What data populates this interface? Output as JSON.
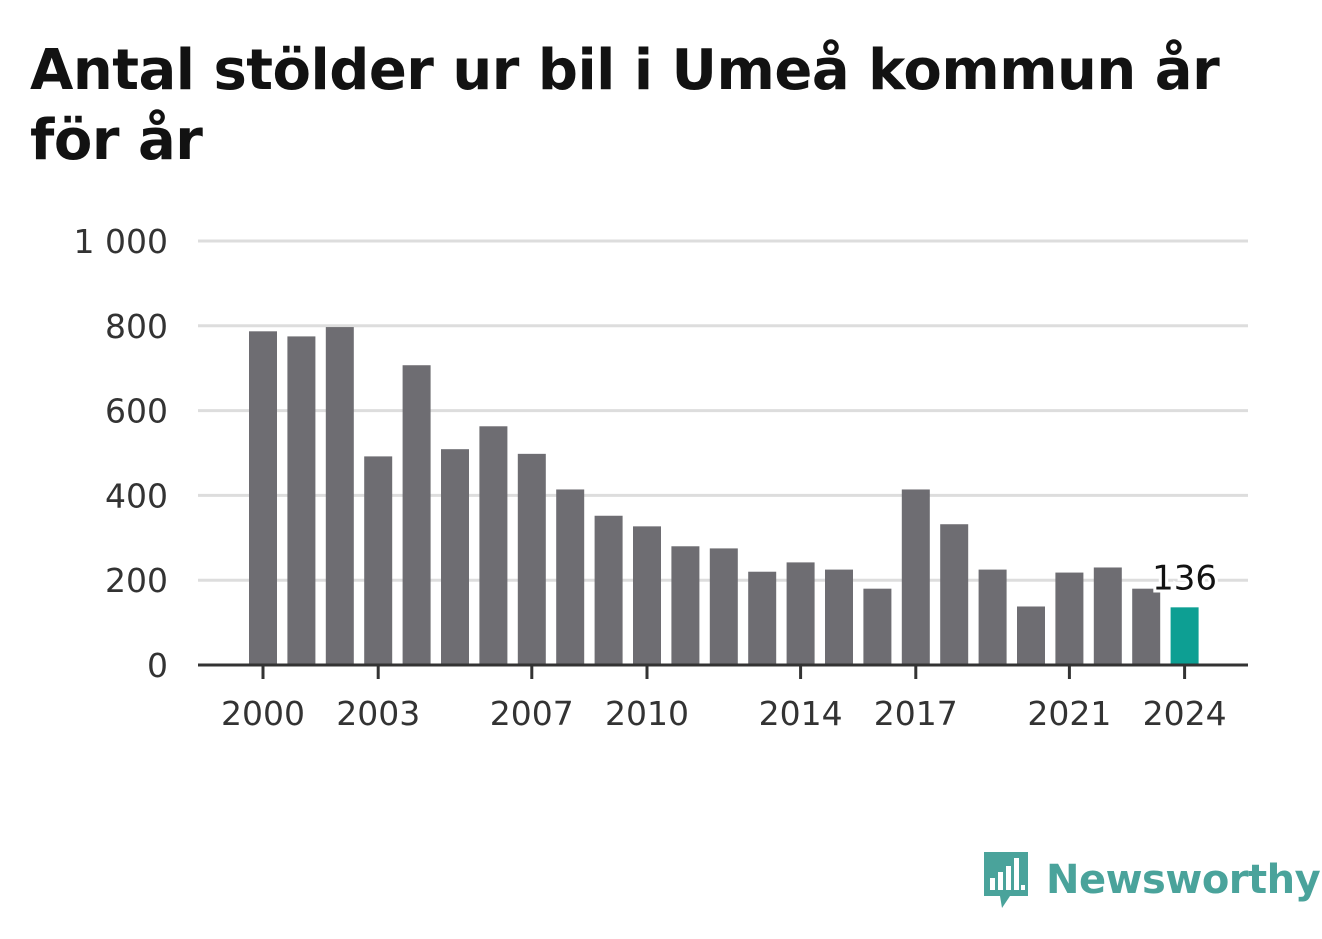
{
  "title": "Antal stölder ur bil i Umeå kommun år för år",
  "brand": {
    "name": "Newsworthy",
    "icon": "bar-chart-speech-icon",
    "color": "#4aa39b"
  },
  "colors": {
    "bar": "#6e6d72",
    "highlight": "#0d9f93",
    "grid": "#dddddd",
    "axis": "#333333"
  },
  "chart_data": {
    "type": "bar",
    "title": "Antal stölder ur bil i Umeå kommun år för år",
    "xlabel": "",
    "ylabel": "",
    "categories": [
      "2000",
      "2001",
      "2002",
      "2003",
      "2004",
      "2005",
      "2006",
      "2007",
      "2008",
      "2009",
      "2010",
      "2011",
      "2012",
      "2013",
      "2014",
      "2015",
      "2016",
      "2017",
      "2018",
      "2019",
      "2020",
      "2021",
      "2022",
      "2023",
      "2024"
    ],
    "values": [
      787,
      775,
      797,
      492,
      707,
      509,
      563,
      498,
      414,
      352,
      327,
      280,
      275,
      220,
      242,
      225,
      180,
      414,
      332,
      225,
      138,
      218,
      230,
      180,
      136
    ],
    "highlight_index": 24,
    "data_labels": [
      {
        "index": 24,
        "text": "136"
      }
    ],
    "ylim": [
      0,
      1000
    ],
    "yticks": [
      0,
      200,
      400,
      600,
      800,
      1000
    ],
    "ytick_labels": [
      "0",
      "200",
      "400",
      "600",
      "800",
      "1 000"
    ],
    "xtick_labels": [
      "2000",
      "2003",
      "2007",
      "2010",
      "2014",
      "2017",
      "2021",
      "2024"
    ],
    "grid": true,
    "legend": "none"
  }
}
